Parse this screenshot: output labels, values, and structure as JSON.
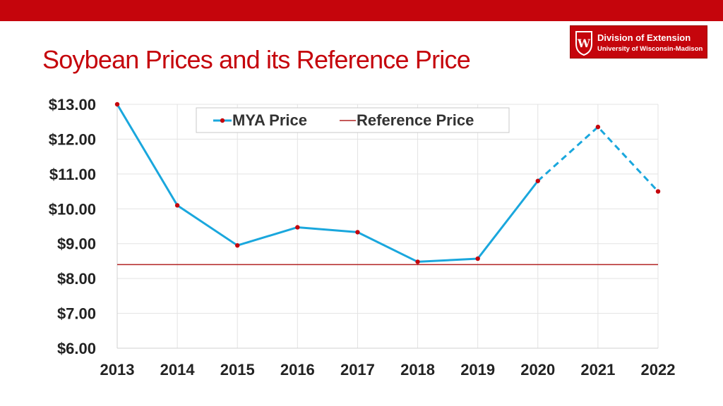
{
  "slide": {
    "title": "Soybean Prices and its Reference Price"
  },
  "logo": {
    "line1": "Division of Extension",
    "line2": "University of Wisconsin-Madison",
    "crest_letter": "W",
    "bar_color": "#c5050c"
  },
  "chart_data": {
    "type": "line",
    "x": [
      2013,
      2014,
      2015,
      2016,
      2017,
      2018,
      2019,
      2020,
      2021,
      2022
    ],
    "ylim": [
      6,
      13
    ],
    "yticks": [
      6,
      7,
      8,
      9,
      10,
      11,
      12,
      13
    ],
    "ytick_labels": [
      "$6.00",
      "$7.00",
      "$8.00",
      "$9.00",
      "$10.00",
      "$11.00",
      "$12.00",
      "$13.00"
    ],
    "grid": true,
    "legend_position": "top-center",
    "series": [
      {
        "name": "MYA Price",
        "values": [
          13.0,
          10.1,
          8.95,
          9.47,
          9.33,
          8.48,
          8.57,
          10.8,
          12.35,
          10.5
        ],
        "color": "#1aa7dd",
        "marker_color": "#c5050c",
        "dashed_from_index": 7
      },
      {
        "name": "Reference Price",
        "values": [
          8.4,
          8.4,
          8.4,
          8.4,
          8.4,
          8.4,
          8.4,
          8.4,
          8.4,
          8.4
        ],
        "color": "#b22222"
      }
    ]
  }
}
